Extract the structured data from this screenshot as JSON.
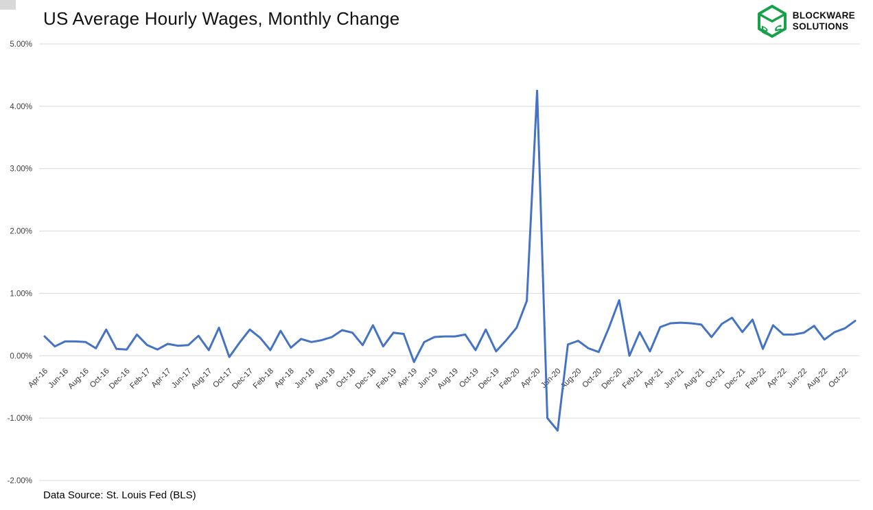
{
  "header": {
    "title": "US Average Hourly Wages, Monthly Change"
  },
  "logo": {
    "line1": "BLOCKWARE",
    "line2": "SOLUTIONS",
    "letters": "BS",
    "cube_color": "#18A04B"
  },
  "footer": {
    "source": "Data Source: St. Louis Fed (BLS)"
  },
  "chart_data": {
    "type": "line",
    "title": "US Average Hourly Wages, Monthly Change",
    "xlabel": "",
    "ylabel": "",
    "ylim": [
      -2.0,
      5.0
    ],
    "grid": true,
    "legend": false,
    "line_color": "#4472C4",
    "grid_color": "#D9D9D9",
    "y_tick_labels": [
      "5.00%",
      "4.00%",
      "3.00%",
      "2.00%",
      "1.00%",
      "0.00%",
      "-1.00%",
      "-2.00%"
    ],
    "y_tick_values": [
      5,
      4,
      3,
      2,
      1,
      0,
      -1,
      -2
    ],
    "x_tick_interval": 2,
    "x": [
      "Apr-16",
      "May-16",
      "Jun-16",
      "Jul-16",
      "Aug-16",
      "Sep-16",
      "Oct-16",
      "Nov-16",
      "Dec-16",
      "Jan-17",
      "Feb-17",
      "Mar-17",
      "Apr-17",
      "May-17",
      "Jun-17",
      "Jul-17",
      "Aug-17",
      "Sep-17",
      "Oct-17",
      "Nov-17",
      "Dec-17",
      "Jan-18",
      "Feb-18",
      "Mar-18",
      "Apr-18",
      "May-18",
      "Jun-18",
      "Jul-18",
      "Aug-18",
      "Sep-18",
      "Oct-18",
      "Nov-18",
      "Dec-18",
      "Jan-19",
      "Feb-19",
      "Mar-19",
      "Apr-19",
      "May-19",
      "Jun-19",
      "Jul-19",
      "Aug-19",
      "Sep-19",
      "Oct-19",
      "Nov-19",
      "Dec-19",
      "Jan-20",
      "Feb-20",
      "Mar-20",
      "Apr-20",
      "May-20",
      "Jun-20",
      "Jul-20",
      "Aug-20",
      "Sep-20",
      "Oct-20",
      "Nov-20",
      "Dec-20",
      "Jan-21",
      "Feb-21",
      "Mar-21",
      "Apr-21",
      "May-21",
      "Jun-21",
      "Jul-21",
      "Aug-21",
      "Sep-21",
      "Oct-21",
      "Nov-21",
      "Dec-21",
      "Jan-22",
      "Feb-22",
      "Mar-22",
      "Apr-22",
      "May-22",
      "Jun-22",
      "Jul-22",
      "Aug-22",
      "Sep-22",
      "Oct-22",
      "Nov-22"
    ],
    "values": [
      0.31,
      0.15,
      0.23,
      0.23,
      0.22,
      0.12,
      0.42,
      0.11,
      0.1,
      0.34,
      0.17,
      0.1,
      0.19,
      0.16,
      0.17,
      0.32,
      0.09,
      0.45,
      -0.02,
      0.21,
      0.42,
      0.29,
      0.09,
      0.4,
      0.13,
      0.27,
      0.22,
      0.25,
      0.3,
      0.41,
      0.37,
      0.17,
      0.49,
      0.15,
      0.37,
      0.35,
      -0.1,
      0.22,
      0.3,
      0.31,
      0.31,
      0.34,
      0.09,
      0.42,
      0.07,
      0.25,
      0.45,
      0.88,
      4.25,
      -1.0,
      -1.2,
      0.18,
      0.24,
      0.12,
      0.06,
      0.45,
      0.89,
      0.0,
      0.38,
      0.07,
      0.46,
      0.52,
      0.53,
      0.52,
      0.5,
      0.3,
      0.51,
      0.61,
      0.38,
      0.58,
      0.11,
      0.49,
      0.34,
      0.34,
      0.37,
      0.48,
      0.26,
      0.38,
      0.44,
      0.56
    ]
  }
}
